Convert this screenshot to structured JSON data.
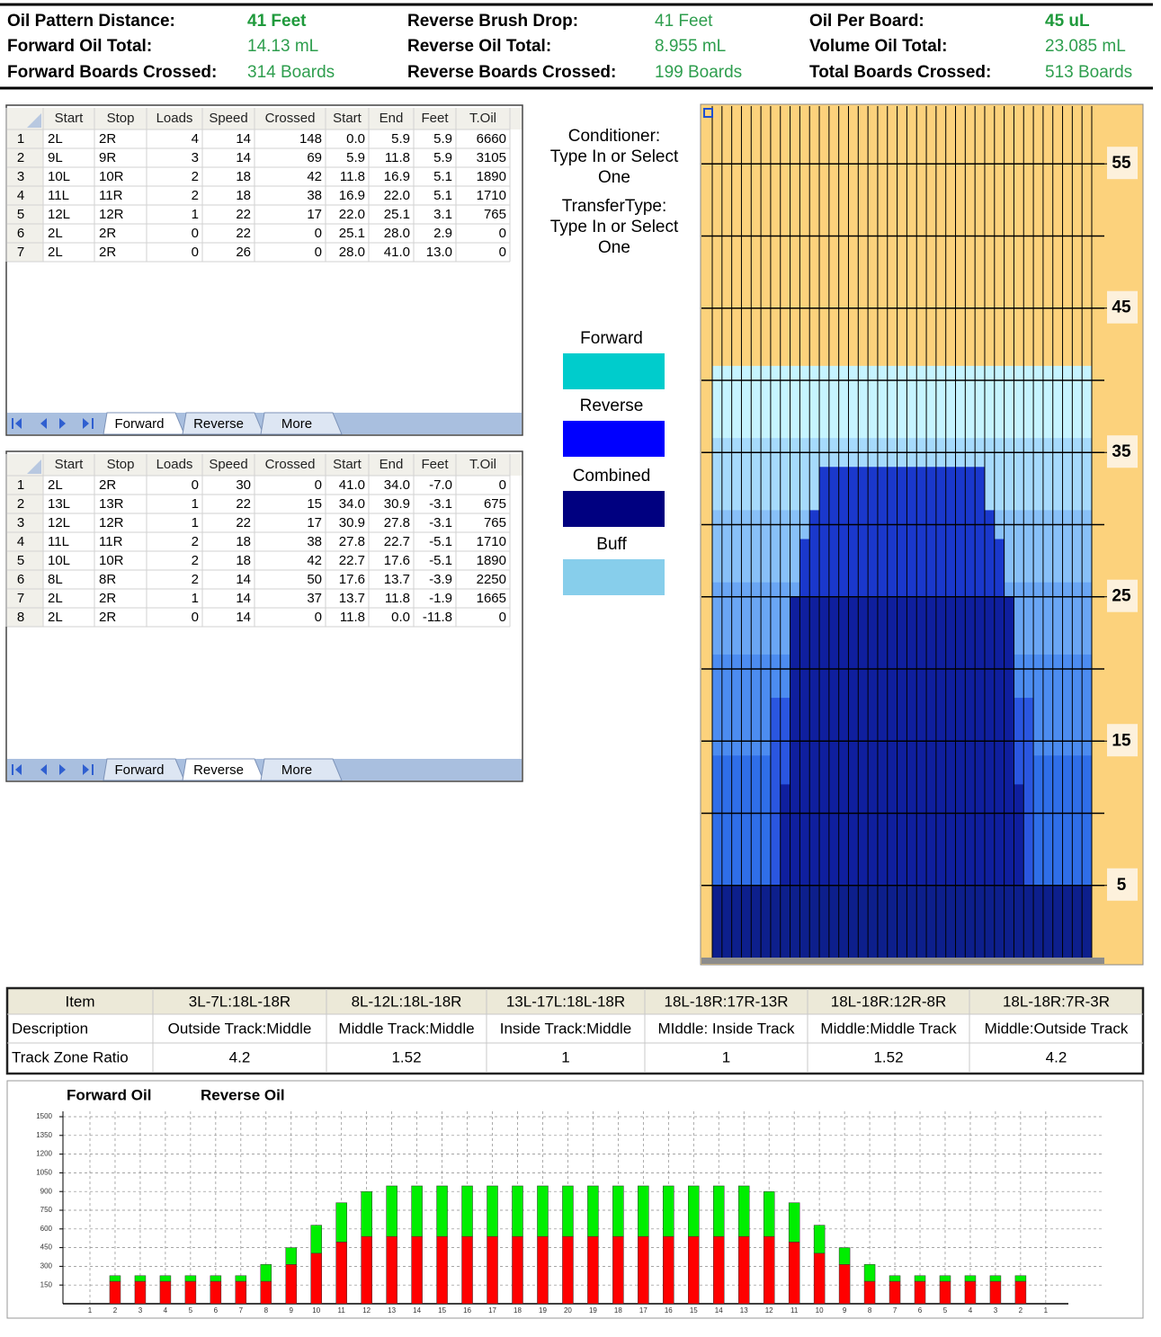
{
  "summary": [
    [
      {
        "label": "Oil Pattern Distance:",
        "value": "41 Feet",
        "emphasis": true
      },
      {
        "label": "Forward Oil Total:",
        "value": "14.13 mL"
      },
      {
        "label": "Forward Boards Crossed:",
        "value": "314 Boards"
      }
    ],
    [
      {
        "label": "Reverse Brush Drop:",
        "value": "41 Feet"
      },
      {
        "label": "Reverse Oil Total:",
        "value": "8.955 mL"
      },
      {
        "label": "Reverse Boards Crossed:",
        "value": "199 Boards"
      }
    ],
    [
      {
        "label": "Oil Per Board:",
        "value": "45 uL",
        "emphasis": true
      },
      {
        "label": "Volume Oil Total:",
        "value": "23.085 mL"
      },
      {
        "label": "Total Boards Crossed:",
        "value": "513 Boards"
      }
    ]
  ],
  "forward_table": {
    "headers": [
      "Start",
      "Stop",
      "Loads",
      "Speed",
      "Crossed",
      "Start",
      "End",
      "Feet",
      "T.Oil"
    ],
    "rows": [
      [
        "1",
        "2L",
        "2R",
        "4",
        "14",
        "148",
        "0.0",
        "5.9",
        "5.9",
        "6660"
      ],
      [
        "2",
        "9L",
        "9R",
        "3",
        "14",
        "69",
        "5.9",
        "11.8",
        "5.9",
        "3105"
      ],
      [
        "3",
        "10L",
        "10R",
        "2",
        "18",
        "42",
        "11.8",
        "16.9",
        "5.1",
        "1890"
      ],
      [
        "4",
        "11L",
        "11R",
        "2",
        "18",
        "38",
        "16.9",
        "22.0",
        "5.1",
        "1710"
      ],
      [
        "5",
        "12L",
        "12R",
        "1",
        "22",
        "17",
        "22.0",
        "25.1",
        "3.1",
        "765"
      ],
      [
        "6",
        "2L",
        "2R",
        "0",
        "22",
        "0",
        "25.1",
        "28.0",
        "2.9",
        "0"
      ],
      [
        "7",
        "2L",
        "2R",
        "0",
        "26",
        "0",
        "28.0",
        "41.0",
        "13.0",
        "0"
      ]
    ],
    "tabs": [
      "Forward",
      "Reverse",
      "More"
    ],
    "active_tab": 0
  },
  "reverse_table": {
    "headers": [
      "Start",
      "Stop",
      "Loads",
      "Speed",
      "Crossed",
      "Start",
      "End",
      "Feet",
      "T.Oil"
    ],
    "rows": [
      [
        "1",
        "2L",
        "2R",
        "0",
        "30",
        "0",
        "41.0",
        "34.0",
        "-7.0",
        "0"
      ],
      [
        "2",
        "13L",
        "13R",
        "1",
        "22",
        "15",
        "34.0",
        "30.9",
        "-3.1",
        "675"
      ],
      [
        "3",
        "12L",
        "12R",
        "1",
        "22",
        "17",
        "30.9",
        "27.8",
        "-3.1",
        "765"
      ],
      [
        "4",
        "11L",
        "11R",
        "2",
        "18",
        "38",
        "27.8",
        "22.7",
        "-5.1",
        "1710"
      ],
      [
        "5",
        "10L",
        "10R",
        "2",
        "18",
        "42",
        "22.7",
        "17.6",
        "-5.1",
        "1890"
      ],
      [
        "6",
        "8L",
        "8R",
        "2",
        "14",
        "50",
        "17.6",
        "13.7",
        "-3.9",
        "2250"
      ],
      [
        "7",
        "2L",
        "2R",
        "1",
        "14",
        "37",
        "13.7",
        "11.8",
        "-1.9",
        "1665"
      ],
      [
        "8",
        "2L",
        "2R",
        "0",
        "14",
        "0",
        "11.8",
        "0.0",
        "-11.8",
        "0"
      ]
    ],
    "tabs": [
      "Forward",
      "Reverse",
      "More"
    ],
    "active_tab": 1
  },
  "conditioner": [
    "Conditioner:",
    "Type In or Select",
    "One"
  ],
  "transfer_type": [
    "TransferType:",
    "Type In or Select",
    "One"
  ],
  "legend": [
    {
      "label": "Forward",
      "color": "#00cccc"
    },
    {
      "label": "Reverse",
      "color": "#0000ff"
    },
    {
      "label": "Combined",
      "color": "#000080"
    },
    {
      "label": "Buff",
      "color": "#87ceeb"
    }
  ],
  "lane_chart": {
    "type": "pattern",
    "boards": 39,
    "ylim": [
      0,
      59
    ],
    "yticks": [
      5,
      15,
      25,
      35,
      45,
      55
    ],
    "ygrid": [
      5,
      10,
      15,
      20,
      25,
      30,
      35,
      40,
      45,
      50,
      55
    ],
    "blocks": [
      {
        "boards": [
          1,
          39
        ],
        "feet": [
          0,
          41
        ],
        "color": "#c6f4ff"
      },
      {
        "boards": [
          1,
          39
        ],
        "feet": [
          0,
          36
        ],
        "color": "#a6dafc"
      },
      {
        "boards": [
          1,
          39
        ],
        "feet": [
          0,
          31
        ],
        "color": "#88c0f8"
      },
      {
        "boards": [
          1,
          39
        ],
        "feet": [
          0,
          26
        ],
        "color": "#6aa6f4"
      },
      {
        "boards": [
          1,
          39
        ],
        "feet": [
          0,
          21
        ],
        "color": "#4c8cf0"
      },
      {
        "boards": [
          1,
          39
        ],
        "feet": [
          0,
          14
        ],
        "color": "#2f6ee8"
      },
      {
        "boards": [
          7,
          33
        ],
        "feet": [
          0,
          18
        ],
        "color": "#2a56e0"
      },
      {
        "boards": [
          8,
          32
        ],
        "feet": [
          0,
          12
        ],
        "color": "#0f1f9e"
      },
      {
        "boards": [
          9,
          31
        ],
        "feet": [
          0,
          25
        ],
        "color": "#0f1f9e"
      },
      {
        "boards": [
          10,
          30
        ],
        "feet": [
          25,
          29
        ],
        "color": "#1a38cc"
      },
      {
        "boards": [
          11,
          29
        ],
        "feet": [
          25,
          31
        ],
        "color": "#1a38cc"
      },
      {
        "boards": [
          12,
          28
        ],
        "feet": [
          25,
          34
        ],
        "color": "#1a38cc"
      },
      {
        "boards": [
          1,
          39
        ],
        "feet": [
          0,
          5
        ],
        "color": "#0d1f8c"
      }
    ]
  },
  "ratio_table": {
    "headers": [
      "Item",
      "3L-7L:18L-18R",
      "8L-12L:18L-18R",
      "13L-17L:18L-18R",
      "18L-18R:17R-13R",
      "18L-18R:12R-8R",
      "18L-18R:7R-3R"
    ],
    "rows": [
      [
        "Description",
        "Outside Track:Middle",
        "Middle Track:Middle",
        "Inside Track:Middle",
        "MIddle: Inside Track",
        "Middle:Middle Track",
        "Middle:Outside Track"
      ],
      [
        "Track Zone Ratio",
        "4.2",
        "1.52",
        "1",
        "1",
        "1.52",
        "4.2"
      ]
    ]
  },
  "chart_data": {
    "type": "bar",
    "stacked": true,
    "categories": [
      "1",
      "2",
      "3",
      "4",
      "5",
      "6",
      "7",
      "8",
      "9",
      "10",
      "11",
      "12",
      "13",
      "14",
      "15",
      "16",
      "17",
      "18",
      "19",
      "20",
      "19",
      "18",
      "17",
      "16",
      "15",
      "14",
      "13",
      "12",
      "11",
      "10",
      "9",
      "8",
      "7",
      "6",
      "5",
      "4",
      "3",
      "2",
      "1"
    ],
    "series": [
      {
        "name": "Forward Oil",
        "color": "#ff0000",
        "values": [
          0,
          180,
          180,
          180,
          180,
          180,
          180,
          180,
          315,
          405,
          495,
          540,
          540,
          540,
          540,
          540,
          540,
          540,
          540,
          540,
          540,
          540,
          540,
          540,
          540,
          540,
          540,
          540,
          495,
          405,
          315,
          180,
          180,
          180,
          180,
          180,
          180,
          180,
          0
        ]
      },
      {
        "name": "Reverse Oil",
        "color": "#00ee00",
        "values": [
          0,
          45,
          45,
          45,
          45,
          45,
          45,
          135,
          135,
          225,
          315,
          360,
          405,
          405,
          405,
          405,
          405,
          405,
          405,
          405,
          405,
          405,
          405,
          405,
          405,
          405,
          405,
          360,
          315,
          225,
          135,
          135,
          45,
          45,
          45,
          45,
          45,
          45,
          0
        ]
      }
    ],
    "ylim": [
      0,
      1500
    ],
    "yticks": [
      150,
      300,
      450,
      600,
      750,
      900,
      1050,
      1200,
      1350,
      1500
    ],
    "grid": true
  }
}
